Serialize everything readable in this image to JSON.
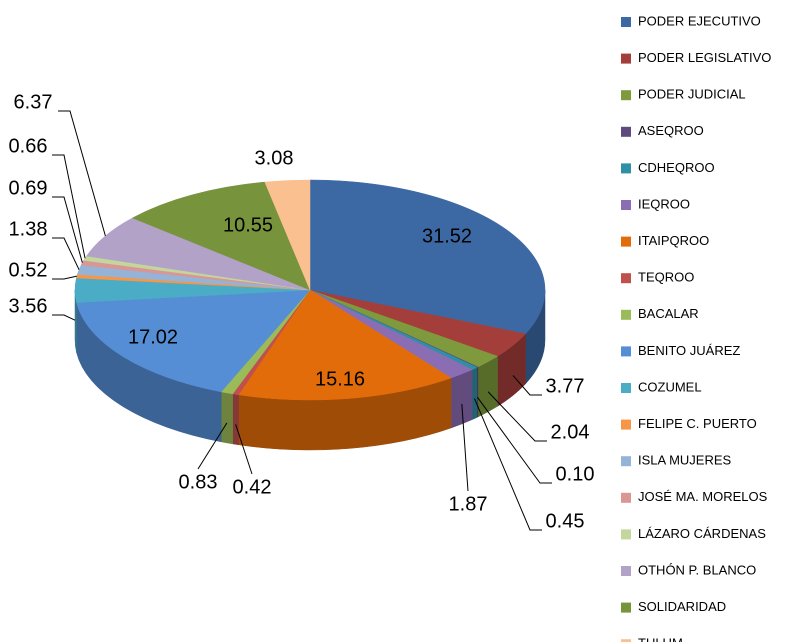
{
  "chart_data": {
    "type": "pie",
    "categories": [
      "PODER EJECUTIVO",
      "PODER LEGISLATIVO",
      "PODER JUDICIAL",
      "ASEQROO",
      "CDHEQROO",
      "IEQROO",
      "ITAIPQROO",
      "TEQROO",
      "BACALAR",
      "BENITO JUÁREZ",
      "COZUMEL",
      "FELIPE C. PUERTO",
      "ISLA MUJERES",
      "JOSÉ MA. MORELOS",
      "LÁZARO CÁRDENAS",
      "OTHÓN P. BLANCO",
      "SOLIDARIDAD",
      "TULUM"
    ],
    "values": [
      31.52,
      3.77,
      2.04,
      0.1,
      0.45,
      1.87,
      15.16,
      0.42,
      0.83,
      17.02,
      3.56,
      0.52,
      1.38,
      0.69,
      0.66,
      6.37,
      10.55,
      3.08
    ],
    "value_labels": [
      "31.52",
      "3.77",
      "2.04",
      "0.10",
      "0.45",
      "1.87",
      "15.16",
      "0.42",
      "0.83",
      "17.02",
      "3.56",
      "0.52",
      "1.38",
      "0.69",
      "0.66",
      "6.37",
      "10.55",
      "3.08"
    ],
    "colors": [
      "#3c68a3",
      "#a33e3b",
      "#7e9a3c",
      "#5f4a7e",
      "#2e8fa6",
      "#8a6db3",
      "#e36c0a",
      "#c0504d",
      "#9bbb59",
      "#558ed5",
      "#4bacc6",
      "#f79646",
      "#95b3d7",
      "#d99694",
      "#c3d69b",
      "#b3a2c7",
      "#77933c",
      "#fac090"
    ],
    "legend": "right"
  }
}
